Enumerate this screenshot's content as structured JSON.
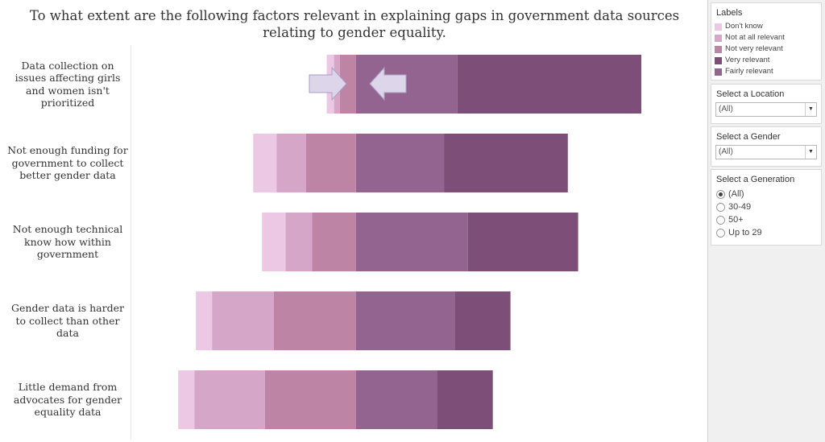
{
  "title": "To what extent are the following factors relevant in explaining gaps in government data sources relating to gender equality.",
  "colors": {
    "dont_know": "#ecc8e4",
    "not_at_all": "#d6a6c8",
    "not_very": "#bd84a6",
    "fairly": "#92648f",
    "very": "#7d4e77",
    "arrow_fill": "#ddd5ea",
    "arrow_stroke": "#a9a0c4"
  },
  "chart_data": {
    "type": "bar",
    "stacked": "diverging",
    "categories": [
      "Data collection on issues affecting girls and women isn't prioritized",
      "Not enough funding for government to collect better gender data",
      "Not enough technical know how within government",
      "Gender data is harder to collect than other data",
      "Little demand from advocates for gender equality data"
    ],
    "series": [
      {
        "name": "Don't know",
        "values": [
          2.5,
          8,
          8,
          5.5,
          5.5
        ]
      },
      {
        "name": "Not at all relevant",
        "values": [
          2,
          10,
          9,
          21,
          24
        ]
      },
      {
        "name": "Not very relevant",
        "values": [
          5.5,
          17,
          15,
          28,
          31
        ]
      },
      {
        "name": "Fairly relevant",
        "values": [
          34.5,
          30,
          38,
          33.5,
          27.5
        ]
      },
      {
        "name": "Very relevant",
        "values": [
          62.5,
          42,
          37.5,
          19,
          19
        ]
      }
    ]
  },
  "sidebar": {
    "labels": {
      "title": "Labels",
      "items": [
        "Don't know",
        "Not at all relevant",
        "Not very relevant",
        "Very relevant",
        "Fairly relevant"
      ],
      "colors": [
        "#ecc8e4",
        "#d6a6c8",
        "#bd84a6",
        "#7d4e77",
        "#92648f"
      ]
    },
    "location": {
      "title": "Select a Location",
      "value": "(All)"
    },
    "gender": {
      "title": "Select a Gender",
      "value": "(All)"
    },
    "generation": {
      "title": "Select a Generation",
      "options": [
        "(All)",
        "30-49",
        "50+",
        "Up to 29"
      ],
      "selected": "(All)"
    }
  }
}
